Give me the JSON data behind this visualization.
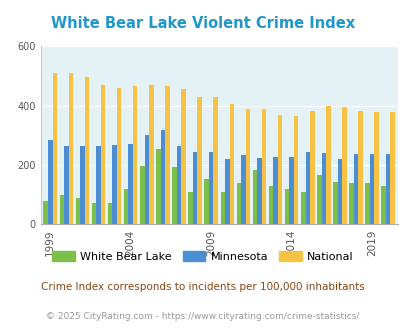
{
  "title": "White Bear Lake Violent Crime Index",
  "title_color": "#2196C8",
  "years": [
    1999,
    2000,
    2001,
    2002,
    2003,
    2004,
    2005,
    2006,
    2007,
    2008,
    2009,
    2010,
    2011,
    2012,
    2013,
    2014,
    2015,
    2016,
    2017,
    2018,
    2019,
    2020
  ],
  "wbl": [
    78,
    100,
    88,
    72,
    72,
    120,
    198,
    255,
    192,
    108,
    152,
    110,
    140,
    183,
    128,
    120,
    108,
    168,
    142,
    138,
    140,
    130
  ],
  "mn": [
    285,
    263,
    265,
    263,
    268,
    272,
    300,
    318,
    265,
    245,
    243,
    220,
    232,
    225,
    228,
    228,
    243,
    240,
    220,
    238,
    238,
    238
  ],
  "nat": [
    510,
    510,
    495,
    470,
    460,
    465,
    470,
    465,
    455,
    430,
    430,
    405,
    390,
    390,
    370,
    365,
    382,
    400,
    395,
    383,
    380,
    378
  ],
  "wbl_color": "#7CBF4A",
  "mn_color": "#4B8ED4",
  "nat_color": "#F5C245",
  "bg_color": "#E5F2F5",
  "ylim": [
    0,
    600
  ],
  "yticks": [
    0,
    200,
    400,
    600
  ],
  "xlabel_years": [
    1999,
    2004,
    2009,
    2014,
    2019
  ],
  "legend_labels": [
    "White Bear Lake",
    "Minnesota",
    "National"
  ],
  "note": "Crime Index corresponds to incidents per 100,000 inhabitants",
  "note_color": "#8B4513",
  "copyright": "© 2025 CityRating.com - https://www.cityrating.com/crime-statistics/",
  "copyright_color": "#999999",
  "figsize": [
    4.06,
    3.3
  ],
  "dpi": 100
}
